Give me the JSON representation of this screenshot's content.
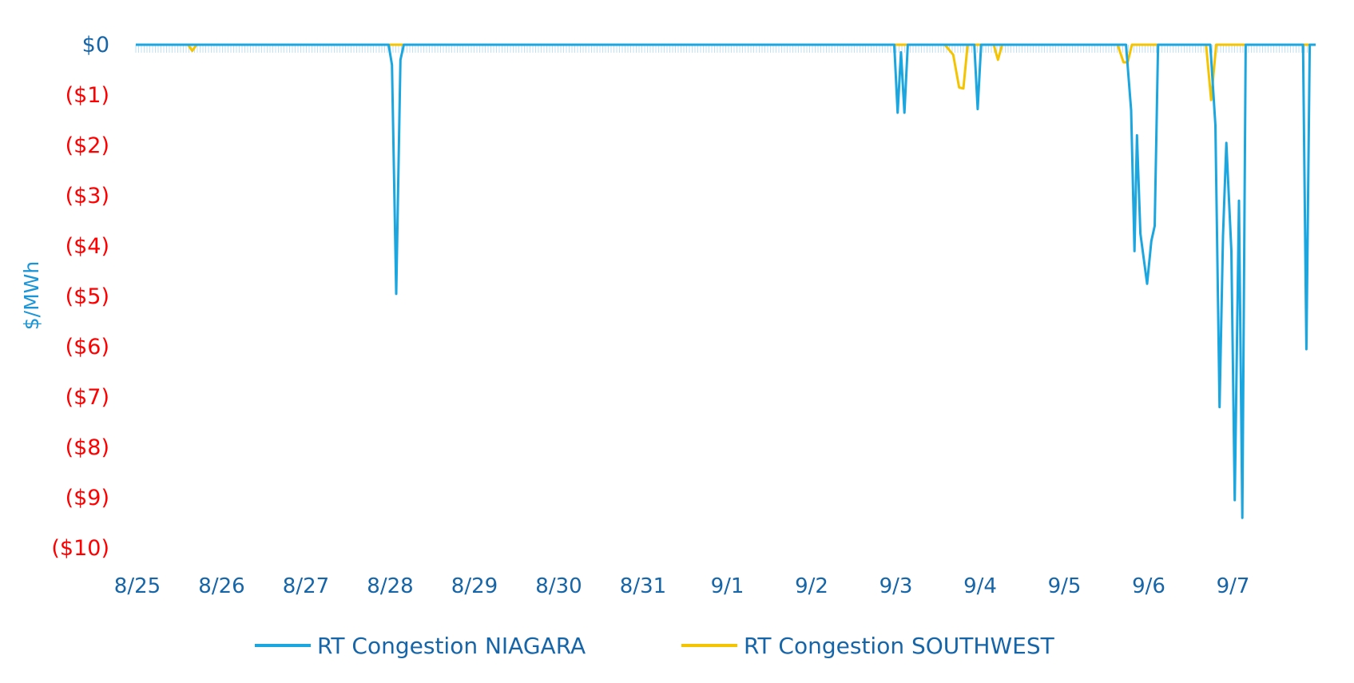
{
  "chart_data": {
    "type": "line",
    "ylabel": "$/MWh",
    "ylim": [
      -10,
      0
    ],
    "y_ticks": [
      {
        "value": 0,
        "label": "$0",
        "color": "#1565a8"
      },
      {
        "value": -1,
        "label": "($1)",
        "color": "#ff0000"
      },
      {
        "value": -2,
        "label": "($2)",
        "color": "#ff0000"
      },
      {
        "value": -3,
        "label": "($3)",
        "color": "#ff0000"
      },
      {
        "value": -4,
        "label": "($4)",
        "color": "#ff0000"
      },
      {
        "value": -5,
        "label": "($5)",
        "color": "#ff0000"
      },
      {
        "value": -6,
        "label": "($6)",
        "color": "#ff0000"
      },
      {
        "value": -7,
        "label": "($7)",
        "color": "#ff0000"
      },
      {
        "value": -8,
        "label": "($8)",
        "color": "#ff0000"
      },
      {
        "value": -9,
        "label": "($9)",
        "color": "#ff0000"
      },
      {
        "value": -10,
        "label": "($10)",
        "color": "#ff0000"
      }
    ],
    "x_ticks": [
      "8/25",
      "8/26",
      "8/27",
      "8/28",
      "8/29",
      "8/30",
      "8/31",
      "9/1",
      "9/2",
      "9/3",
      "9/4",
      "9/5",
      "9/6",
      "9/7"
    ],
    "x_range": [
      0,
      14
    ],
    "legend_position": "bottom",
    "series": [
      {
        "name": "RT Congestion NIAGARA",
        "color": "#1ba6e0",
        "points": [
          [
            0,
            0
          ],
          [
            3.0,
            0
          ],
          [
            3.04,
            -0.4
          ],
          [
            3.09,
            -4.95
          ],
          [
            3.14,
            -0.3
          ],
          [
            3.18,
            0
          ],
          [
            9.0,
            0
          ],
          [
            9.04,
            -1.35
          ],
          [
            9.08,
            -0.15
          ],
          [
            9.12,
            -1.35
          ],
          [
            9.16,
            0
          ],
          [
            9.95,
            0
          ],
          [
            9.99,
            -1.28
          ],
          [
            10.03,
            0
          ],
          [
            11.75,
            0
          ],
          [
            11.81,
            -1.3
          ],
          [
            11.85,
            -4.1
          ],
          [
            11.88,
            -1.8
          ],
          [
            11.92,
            -3.75
          ],
          [
            12.0,
            -4.75
          ],
          [
            12.05,
            -3.9
          ],
          [
            12.09,
            -3.6
          ],
          [
            12.13,
            0
          ],
          [
            12.75,
            0
          ],
          [
            12.81,
            -1.6
          ],
          [
            12.86,
            -7.2
          ],
          [
            12.9,
            -3.8
          ],
          [
            12.94,
            -1.95
          ],
          [
            13.0,
            -4.1
          ],
          [
            13.04,
            -9.05
          ],
          [
            13.09,
            -3.1
          ],
          [
            13.13,
            -9.4
          ],
          [
            13.17,
            0
          ],
          [
            13.85,
            0
          ],
          [
            13.89,
            -6.05
          ],
          [
            13.93,
            0
          ],
          [
            14.0,
            0
          ]
        ]
      },
      {
        "name": "RT Congestion SOUTHWEST",
        "color": "#f5c400",
        "points": [
          [
            0,
            0
          ],
          [
            0.62,
            0
          ],
          [
            0.67,
            -0.12
          ],
          [
            0.72,
            0
          ],
          [
            9.6,
            0
          ],
          [
            9.7,
            -0.2
          ],
          [
            9.77,
            -0.85
          ],
          [
            9.82,
            -0.87
          ],
          [
            9.87,
            0
          ],
          [
            10.18,
            0
          ],
          [
            10.23,
            -0.3
          ],
          [
            10.28,
            0
          ],
          [
            11.65,
            0
          ],
          [
            11.72,
            -0.35
          ],
          [
            11.77,
            -0.35
          ],
          [
            11.82,
            0
          ],
          [
            12.7,
            0
          ],
          [
            12.76,
            -1.1
          ],
          [
            12.82,
            0
          ],
          [
            14.0,
            0
          ]
        ]
      }
    ]
  }
}
